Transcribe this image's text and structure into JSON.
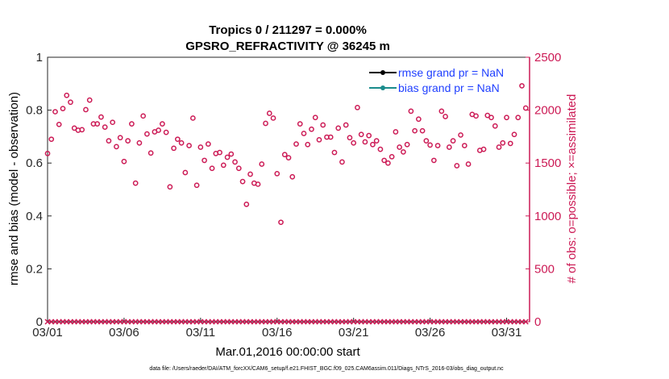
{
  "chart_data": {
    "type": "scatter",
    "title": "Tropics 0 / 211297 = 0.000%",
    "subtitle": "GPSRO_REFRACTIVITY @ 36245 m",
    "xlabel": "Mar.01,2016 00:00:00 start",
    "ylabel_left": "rmse and bias (model - observation)",
    "ylabel_right": "# of obs: o=possible; ×=assimilated",
    "xlim": [
      0,
      31.5
    ],
    "ylim_left": [
      0,
      1
    ],
    "ylim_right": [
      0,
      2500
    ],
    "x_ticks": [
      0,
      5,
      10,
      15,
      20,
      25,
      30
    ],
    "x_tick_labels": [
      "03/01",
      "03/06",
      "03/11",
      "03/16",
      "03/21",
      "03/26",
      "03/31"
    ],
    "y_left_ticks": [
      0,
      0.2,
      0.4,
      0.6,
      0.8,
      1
    ],
    "y_left_tick_labels": [
      "0",
      "0.2",
      "0.4",
      "0.6",
      "0.8",
      "1"
    ],
    "y_right_ticks": [
      0,
      500,
      1000,
      1500,
      2000,
      2500
    ],
    "y_right_tick_labels": [
      "0",
      "500",
      "1000",
      "1500",
      "2000",
      "2500"
    ],
    "legend_position": "top-right",
    "legend": [
      {
        "label": "rmse grand pr = NaN",
        "color": "#000000"
      },
      {
        "label": "bias grand pr = NaN",
        "color": "#1a8c8c"
      }
    ],
    "series": [
      {
        "name": "possible",
        "marker": "o",
        "color": "#cc1a55",
        "axis": "right",
        "x": [
          0.0,
          0.25,
          0.5,
          0.75,
          1.0,
          1.25,
          1.5,
          1.75,
          2.0,
          2.25,
          2.5,
          2.75,
          3.0,
          3.25,
          3.5,
          3.75,
          4.0,
          4.25,
          4.5,
          4.75,
          5.0,
          5.25,
          5.5,
          5.75,
          6.0,
          6.25,
          6.5,
          6.75,
          7.0,
          7.25,
          7.5,
          7.75,
          8.0,
          8.25,
          8.5,
          8.75,
          9.0,
          9.25,
          9.5,
          9.75,
          10.0,
          10.25,
          10.5,
          10.75,
          11.0,
          11.25,
          11.5,
          11.75,
          12.0,
          12.25,
          12.5,
          12.75,
          13.0,
          13.25,
          13.5,
          13.75,
          14.0,
          14.25,
          14.5,
          14.75,
          15.0,
          15.25,
          15.5,
          15.75,
          16.0,
          16.25,
          16.5,
          16.75,
          17.0,
          17.25,
          17.5,
          17.75,
          18.0,
          18.25,
          18.5,
          18.75,
          19.0,
          19.25,
          19.5,
          19.75,
          20.0,
          20.25,
          20.5,
          20.75,
          21.0,
          21.25,
          21.5,
          21.75,
          22.0,
          22.25,
          22.5,
          22.75,
          23.0,
          23.25,
          23.5,
          23.75,
          24.0,
          24.25,
          24.5,
          24.75,
          25.0,
          25.25,
          25.5,
          25.75,
          26.0,
          26.25,
          26.5,
          26.75,
          27.0,
          27.25,
          27.5,
          27.75,
          28.0,
          28.25,
          28.5,
          28.75,
          29.0,
          29.25,
          29.5,
          29.75,
          30.0,
          30.25,
          30.5,
          30.75,
          31.0,
          31.25
        ],
        "y": [
          1590,
          1725,
          1985,
          1865,
          2015,
          2140,
          2075,
          1830,
          1810,
          1815,
          2005,
          2095,
          1870,
          1870,
          1935,
          1840,
          1710,
          1885,
          1655,
          1740,
          1515,
          1710,
          1870,
          1310,
          1690,
          1945,
          1775,
          1595,
          1795,
          1810,
          1870,
          1790,
          1275,
          1640,
          1725,
          1690,
          1410,
          1665,
          1925,
          1290,
          1650,
          1525,
          1680,
          1450,
          1590,
          1600,
          1480,
          1555,
          1585,
          1510,
          1450,
          1325,
          1110,
          1395,
          1310,
          1300,
          1490,
          1875,
          1970,
          1925,
          1400,
          940,
          1580,
          1550,
          1370,
          1680,
          1870,
          1780,
          1675,
          1820,
          1930,
          1720,
          1860,
          1745,
          1745,
          1600,
          1830,
          1510,
          1860,
          1740,
          1690,
          2025,
          1770,
          1700,
          1760,
          1675,
          1710,
          1630,
          1525,
          1500,
          1560,
          1795,
          1650,
          1605,
          1675,
          1990,
          1805,
          1915,
          1805,
          1710,
          1670,
          1525,
          1665,
          1990,
          1940,
          1650,
          1710,
          1475,
          1765,
          1665,
          1490,
          1960,
          1945,
          1620,
          1630,
          1950,
          1930,
          1850,
          1650,
          1690,
          1930,
          1685,
          1770,
          1930,
          2230,
          2020
        ]
      },
      {
        "name": "assimilated",
        "marker": "x",
        "color": "#cc1a55",
        "axis": "right",
        "constant_value": 0
      }
    ]
  },
  "footer": "data file: /Users/raeder/DAI/ATM_forcXX/CAM6_setup/f.e21.FHIST_BGC.f09_025.CAM6assim.011/Diags_NTrS_2016-03/obs_diag_output.nc"
}
